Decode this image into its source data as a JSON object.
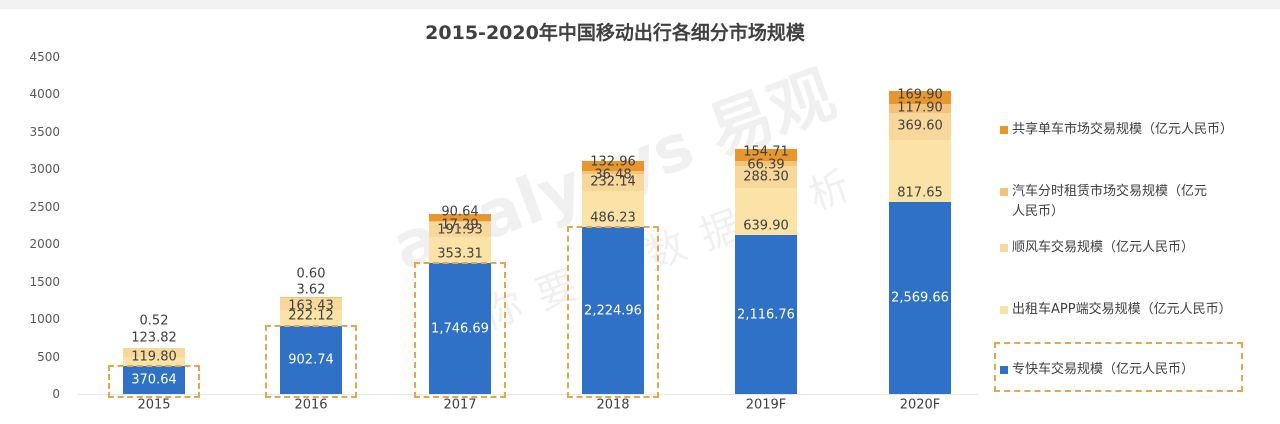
{
  "title": "2015-2020年中国移动出行各细分市场规模",
  "watermark": {
    "brand": "analysys 易观",
    "slogan": "你要的数据分析"
  },
  "colors": {
    "zhuankuai": "#2e71c6",
    "taxi_app": "#fbe3a8",
    "shunfeng": "#f8d89a",
    "car_sharing": "#f3c27b",
    "bike_sharing": "#e8962e",
    "highlight_dash": "#e3a74f"
  },
  "y_axis": {
    "ticks": [
      "0",
      "500",
      "1000",
      "1500",
      "2000",
      "2500",
      "3000",
      "3500",
      "4000",
      "4500"
    ]
  },
  "x_axis": {
    "labels": [
      "2015",
      "2016",
      "2017",
      "2018",
      "2019F",
      "2020F"
    ]
  },
  "legend": [
    {
      "label": "共享单车市场交易规模（亿元人民币）",
      "color": "#e8962e"
    },
    {
      "label": "汽车分时租赁市场交易规模（亿元人民币）",
      "color": "#f3c27b"
    },
    {
      "label": "顺风车交易规模（亿元人民币）",
      "color": "#f8d89a"
    },
    {
      "label": "出租车APP端交易规模（亿元人民币）",
      "color": "#fbe3a8"
    },
    {
      "label": "专快车交易规模（亿元人民币）",
      "color": "#2e71c6"
    }
  ],
  "bars": [
    {
      "year": "2015",
      "labels": [
        "370.64",
        "119.80",
        "123.82",
        "0.52",
        ""
      ]
    },
    {
      "year": "2016",
      "labels": [
        "902.74",
        "222.12",
        "163.43",
        "3.62",
        "0.60"
      ]
    },
    {
      "year": "2017",
      "labels": [
        "1,746.69",
        "353.31",
        "191.93",
        "17.29",
        "90.64"
      ]
    },
    {
      "year": "2018",
      "labels": [
        "2,224.96",
        "486.23",
        "232.14",
        "36.48",
        "132.96"
      ]
    },
    {
      "year": "2019F",
      "labels": [
        "2,116.76",
        "639.90",
        "288.30",
        "66.39",
        "154.71"
      ]
    },
    {
      "year": "2020F",
      "labels": [
        "2,569.66",
        "817.65",
        "369.60",
        "117.90",
        "169.90"
      ]
    }
  ],
  "chart_data": {
    "type": "bar",
    "stacked": true,
    "title": "2015-2020年中国移动出行各细分市场规模",
    "xlabel": "",
    "ylabel": "",
    "ylim": [
      0,
      4500
    ],
    "yticks": [
      0,
      500,
      1000,
      1500,
      2000,
      2500,
      3000,
      3500,
      4000,
      4500
    ],
    "grid": false,
    "legend_position": "right",
    "categories": [
      "2015",
      "2016",
      "2017",
      "2018",
      "2019F",
      "2020F"
    ],
    "series": [
      {
        "name": "专快车交易规模（亿元人民币）",
        "values": [
          370.64,
          902.74,
          1746.69,
          2224.96,
          2116.76,
          2569.66
        ]
      },
      {
        "name": "出租车APP端交易规模（亿元人民币）",
        "values": [
          119.8,
          222.12,
          353.31,
          486.23,
          639.9,
          817.65
        ]
      },
      {
        "name": "顺风车交易规模（亿元人民币）",
        "values": [
          123.82,
          163.43,
          191.93,
          232.14,
          288.3,
          369.6
        ]
      },
      {
        "name": "汽车分时租赁市场交易规模（亿元人民币）",
        "values": [
          0.52,
          3.62,
          17.29,
          36.48,
          66.39,
          117.9
        ]
      },
      {
        "name": "共享单车市场交易规模（亿元人民币）",
        "values": [
          0,
          0.6,
          90.64,
          132.96,
          154.71,
          169.9
        ]
      }
    ],
    "annotations": [
      "Dashed highlight boxes around 专快车 segments for 2015-2018 and around its legend entry"
    ]
  }
}
